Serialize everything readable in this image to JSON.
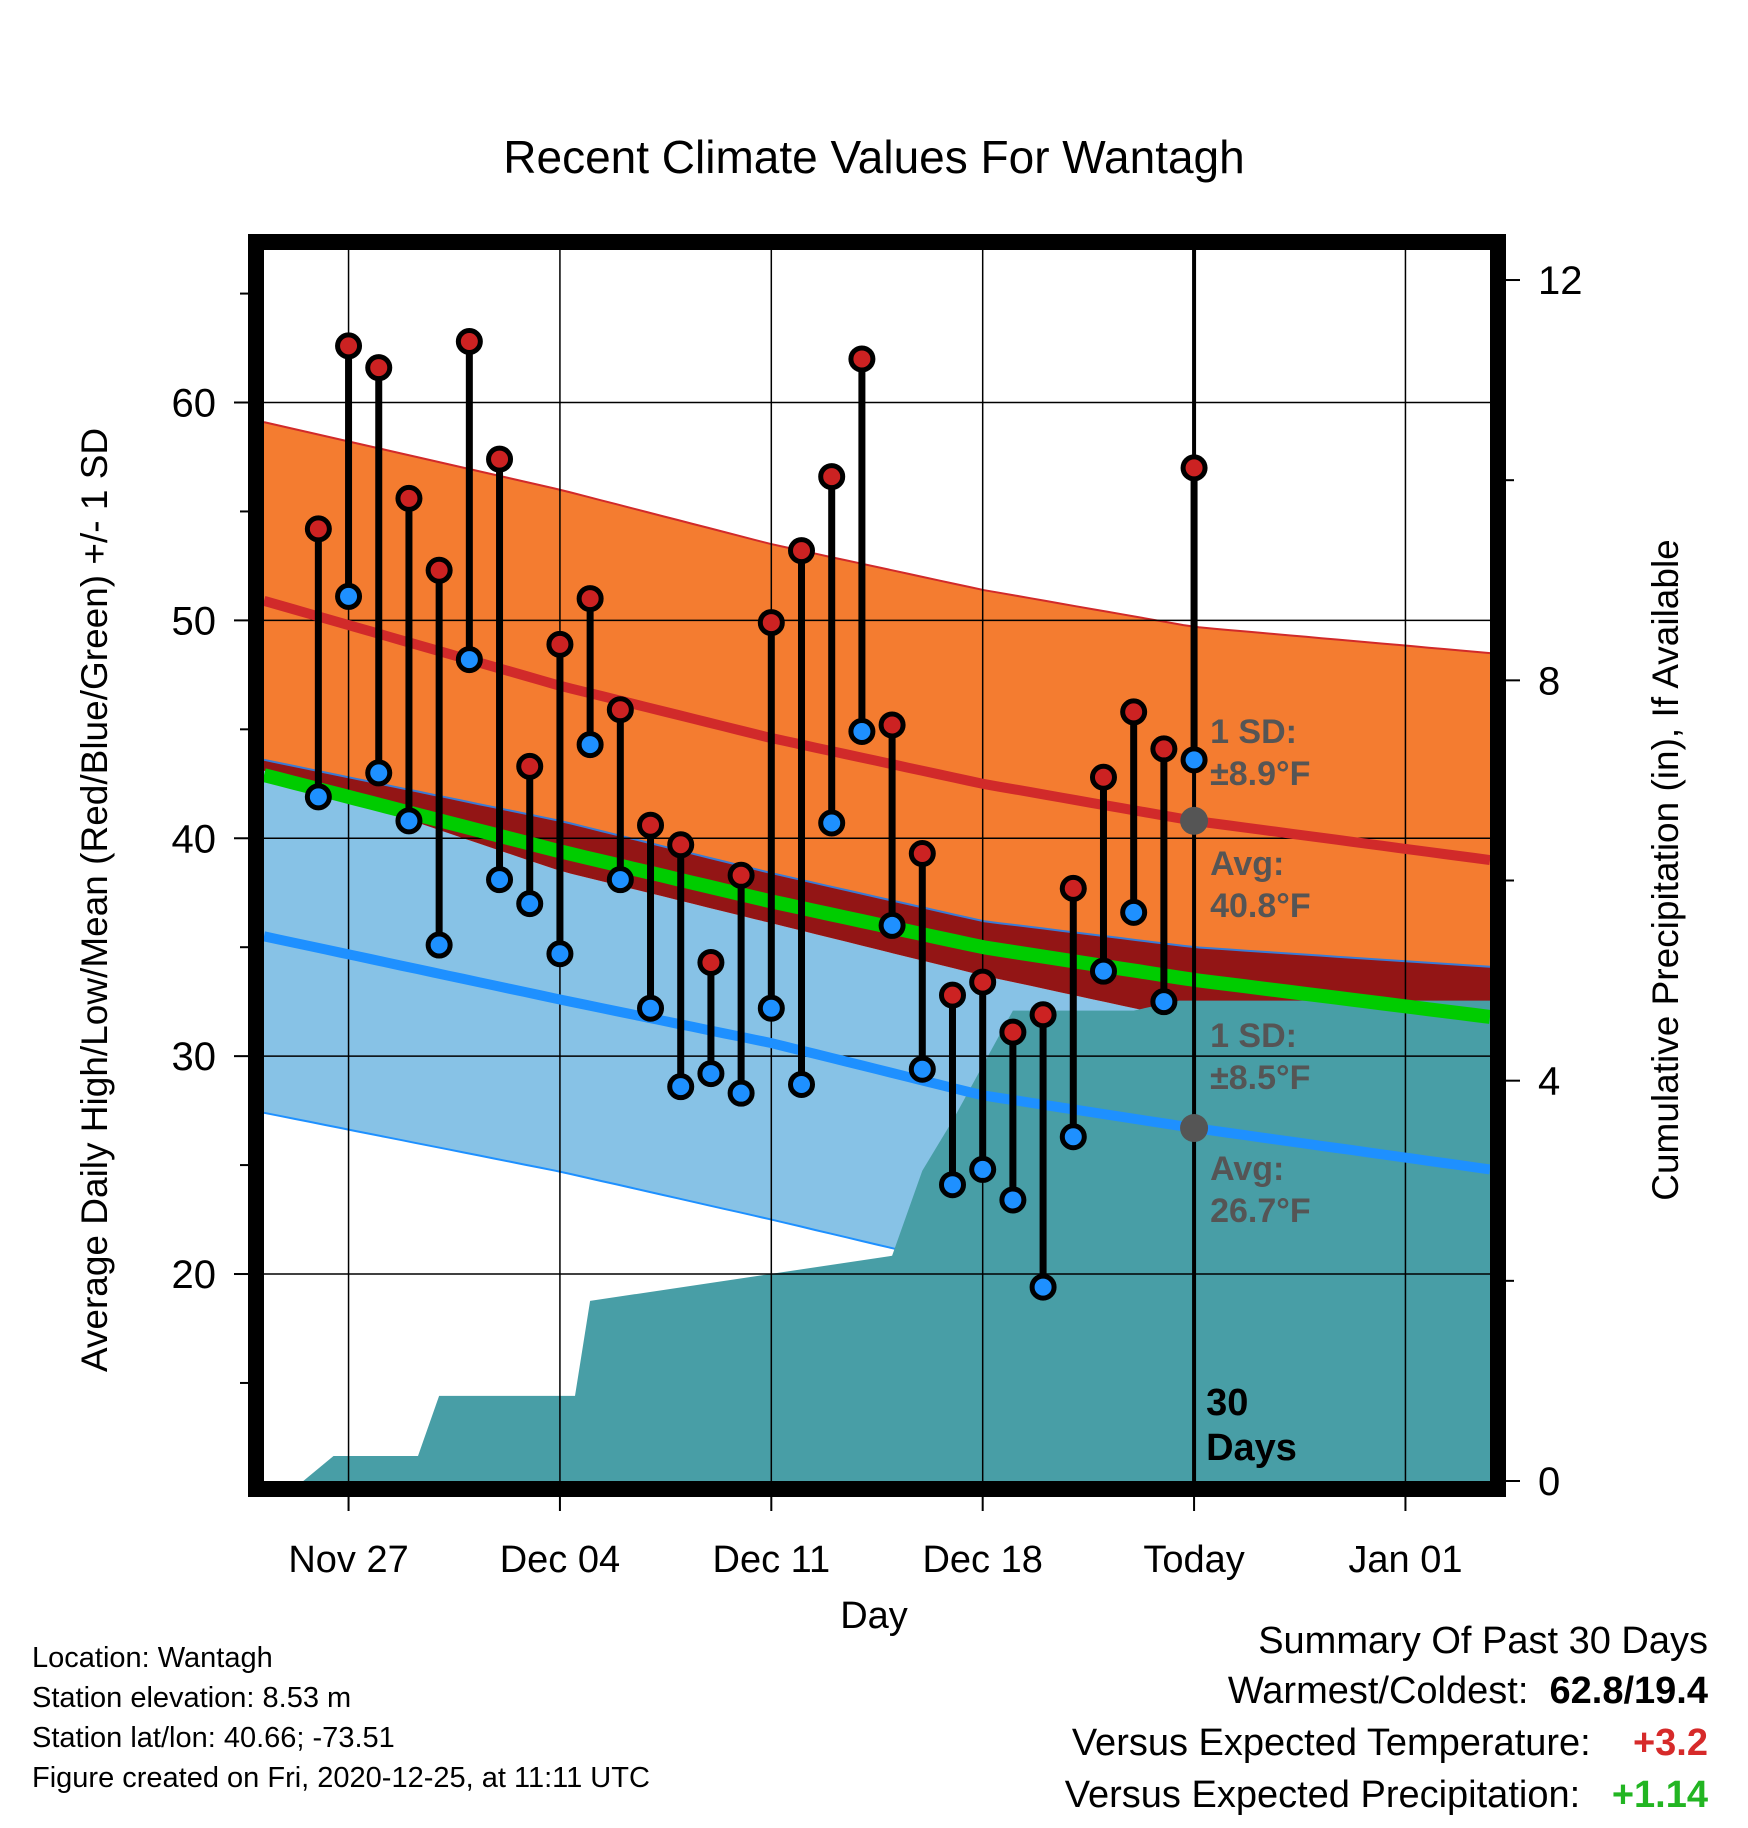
{
  "chart_data": {
    "type": "line",
    "title": "Recent Climate Values For Wantagh",
    "xlabel": "Day",
    "ylabel": "Average Daily High/Low/Mean (Red/Blue/Green) +/- 1 SD",
    "y2label": "Cumulative Precipitation (in), If Available",
    "ylim": [
      10.5,
      67
    ],
    "y2lim": [
      0,
      12.3
    ],
    "yticks": [
      20,
      30,
      40,
      50,
      60
    ],
    "y2ticks": [
      0,
      4,
      8,
      12
    ],
    "xticks": [
      "Nov 27",
      "Dec 04",
      "Dec 11",
      "Dec 18",
      "Today",
      "Jan 01"
    ],
    "xtick_days": [
      2,
      9,
      16,
      23,
      30,
      37
    ],
    "xlim": [
      -0.8,
      39.8
    ],
    "today_day": 30,
    "today_label": [
      "30",
      "Days"
    ],
    "normals": {
      "x": [
        -0.8,
        9,
        16,
        23,
        30,
        39.8
      ],
      "high_avg": [
        50.9,
        47.0,
        44.6,
        42.5,
        40.8,
        39.0
      ],
      "high_plus_sd": [
        59.1,
        56.0,
        53.5,
        51.4,
        49.7,
        48.5
      ],
      "high_minus_sd": [
        43.6,
        40.8,
        38.4,
        36.2,
        35.0,
        34.1
      ],
      "mean": [
        42.9,
        39.4,
        37.1,
        35.0,
        33.5,
        31.8
      ],
      "low_avg": [
        35.5,
        32.6,
        30.6,
        28.2,
        26.7,
        24.8
      ],
      "low_plus_sd": [
        43.1,
        38.5,
        36.1,
        33.7,
        31.6,
        29.8
      ],
      "low_minus_sd": [
        27.4,
        24.7,
        22.5,
        20.2,
        19.0,
        18.6
      ]
    },
    "series": [
      {
        "name": "High",
        "color": "#cc2222",
        "x": [
          1,
          2,
          3,
          4,
          5,
          6,
          7,
          8,
          9,
          10,
          11,
          12,
          13,
          14,
          15,
          16,
          17,
          18,
          19,
          20,
          21,
          22,
          23,
          24,
          25,
          26,
          27,
          28,
          29
        ],
        "values": [
          54.2,
          62.6,
          61.6,
          55.6,
          52.3,
          62.8,
          57.4,
          43.3,
          48.9,
          51.0,
          45.9,
          40.6,
          39.7,
          34.3,
          38.3,
          49.9,
          53.2,
          56.6,
          62.0,
          45.2,
          39.3,
          32.8,
          33.4,
          31.1,
          31.9,
          37.7,
          42.8,
          45.8,
          44.1
        ]
      },
      {
        "name": "Low",
        "color": "#1e90ff",
        "x": [
          1,
          2,
          3,
          4,
          5,
          6,
          7,
          8,
          9,
          10,
          11,
          12,
          13,
          14,
          15,
          16,
          17,
          18,
          19,
          20,
          21,
          22,
          23,
          24,
          25,
          26,
          27,
          28,
          29
        ],
        "values": [
          41.9,
          51.1,
          43.0,
          40.8,
          35.1,
          48.2,
          38.1,
          37.0,
          34.7,
          44.3,
          38.1,
          32.2,
          28.6,
          29.2,
          28.3,
          32.2,
          28.7,
          40.7,
          44.9,
          36.0,
          29.4,
          24.1,
          24.8,
          23.4,
          19.4,
          26.3,
          33.9,
          36.6,
          32.5
        ]
      },
      {
        "name": "Cumulative Precipitation",
        "color": "#489ea6",
        "x": [
          0.5,
          1.5,
          4.3,
          5,
          9.5,
          10,
          20,
          21,
          22,
          24,
          28,
          29.5,
          39.8
        ],
        "values": [
          0.0,
          0.25,
          0.25,
          0.85,
          0.85,
          1.8,
          2.25,
          3.1,
          3.6,
          4.7,
          4.7,
          4.8,
          4.8
        ]
      }
    ],
    "extra_point": {
      "x": 30,
      "high": 57.0,
      "low": 43.6
    },
    "annotations": {
      "high_sd": [
        "1 SD:",
        "±8.9°F"
      ],
      "high_avg": [
        "Avg:",
        "40.8°F"
      ],
      "low_sd": [
        "1 SD:",
        "±8.5°F"
      ],
      "low_avg": [
        "Avg:",
        "26.7°F"
      ]
    }
  },
  "info": {
    "location": "Location: Wantagh",
    "elevation": "Station elevation: 8.53 m",
    "latlon": "Station lat/lon: 40.66; -73.51",
    "created": "Figure created on Fri, 2020-12-25, at 11:11 UTC"
  },
  "summary": {
    "title": "Summary Of Past 30 Days",
    "warm_cold_label": "Warmest/Coldest:",
    "warm_cold_value": "62.8/19.4",
    "temp_label": "Versus Expected Temperature:",
    "temp_value": "+3.2",
    "precip_label": "Versus Expected Precipitation:",
    "precip_value": "+1.14"
  },
  "colors": {
    "high_band": "#f47c30",
    "high_line": "#d12a2a",
    "low_band": "#87c2e6",
    "low_line": "#1e90ff",
    "mean_line": "#00cc00",
    "overlap": "#931515",
    "precip": "#489ea6",
    "annotation": "#555555"
  }
}
